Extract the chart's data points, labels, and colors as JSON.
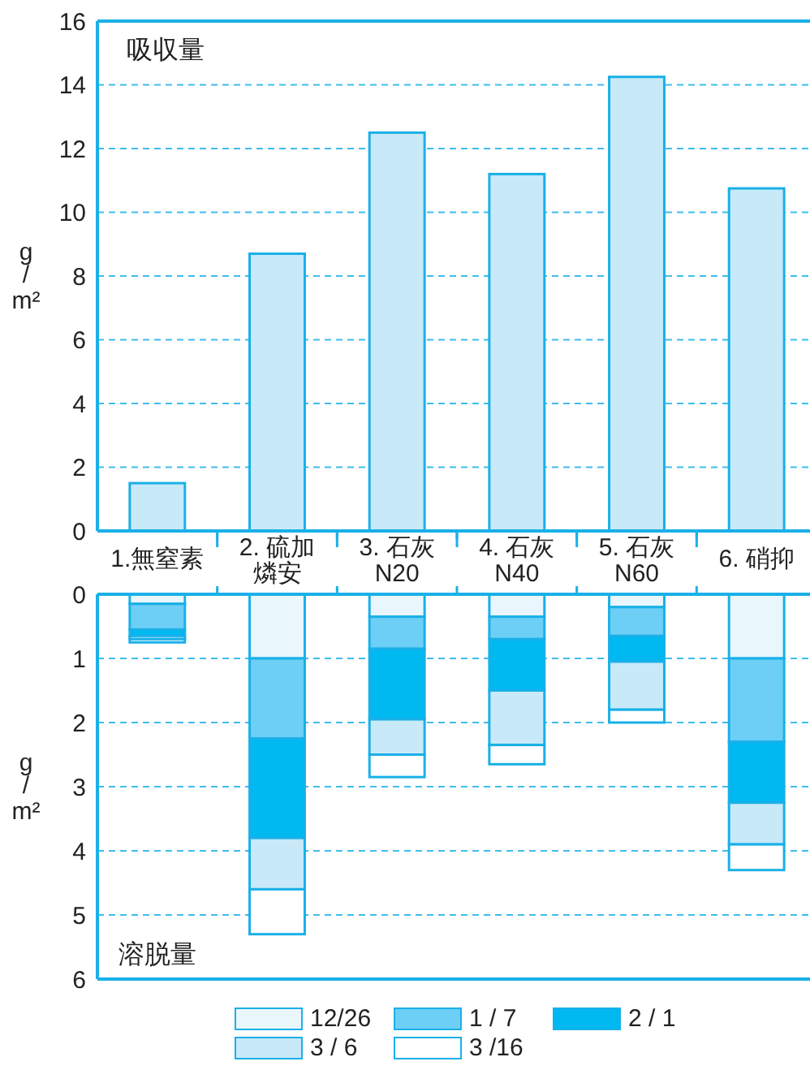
{
  "chart_data": [
    {
      "type": "bar",
      "title": "吸収量",
      "ylabel": "g/m²",
      "categories": [
        "1.無窒素",
        "2. 硫加燐安",
        "3. 石灰N20",
        "4. 石灰N40",
        "5. 石灰N60",
        "6. 硝抑"
      ],
      "values": [
        1.5,
        8.7,
        12.5,
        11.2,
        14.25,
        10.75
      ],
      "color": "#c8e9f8",
      "ylim": [
        0,
        16
      ],
      "yticks": [
        0,
        2,
        4,
        6,
        8,
        10,
        12,
        14,
        16
      ],
      "grid": "y"
    },
    {
      "type": "bar",
      "title": "溶脱量",
      "ylabel": "g/m²",
      "stacked": true,
      "tick_labels": "y",
      "categories": [
        "1.無窒素",
        "2. 硫加燐安",
        "3. 石灰N20",
        "4. 石灰N40",
        "5. 石灰N60",
        "6. 硝抑"
      ],
      "ylim": [
        6,
        0
      ],
      "yticks": [
        0,
        1,
        2,
        3,
        4,
        5,
        6
      ],
      "grid": "y",
      "legend": "bottom",
      "series": [
        {
          "name": "12/26",
          "color": "#e9f7fd",
          "values": [
            0.15,
            1,
            0.35,
            0.35,
            0.2,
            1
          ]
        },
        {
          "name": "1 / 7",
          "color": "#6dcff6",
          "values": [
            0.4,
            1.25,
            0.5,
            0.35,
            0.45,
            1.3
          ]
        },
        {
          "name": "2 / 1",
          "color": "#00b9f1",
          "values": [
            0.1,
            1.55,
            1.1,
            0.8,
            0.4,
            0.95
          ]
        },
        {
          "name": "3 / 6",
          "color": "#c8e9f8",
          "values": [
            0.05,
            0.8,
            0.55,
            0.85,
            0.75,
            0.65
          ]
        },
        {
          "name": "3 /16",
          "color": "#ffffff",
          "values": [
            0.05,
            0.7,
            0.35,
            0.3,
            0.2,
            0.4
          ]
        }
      ]
    }
  ]
}
